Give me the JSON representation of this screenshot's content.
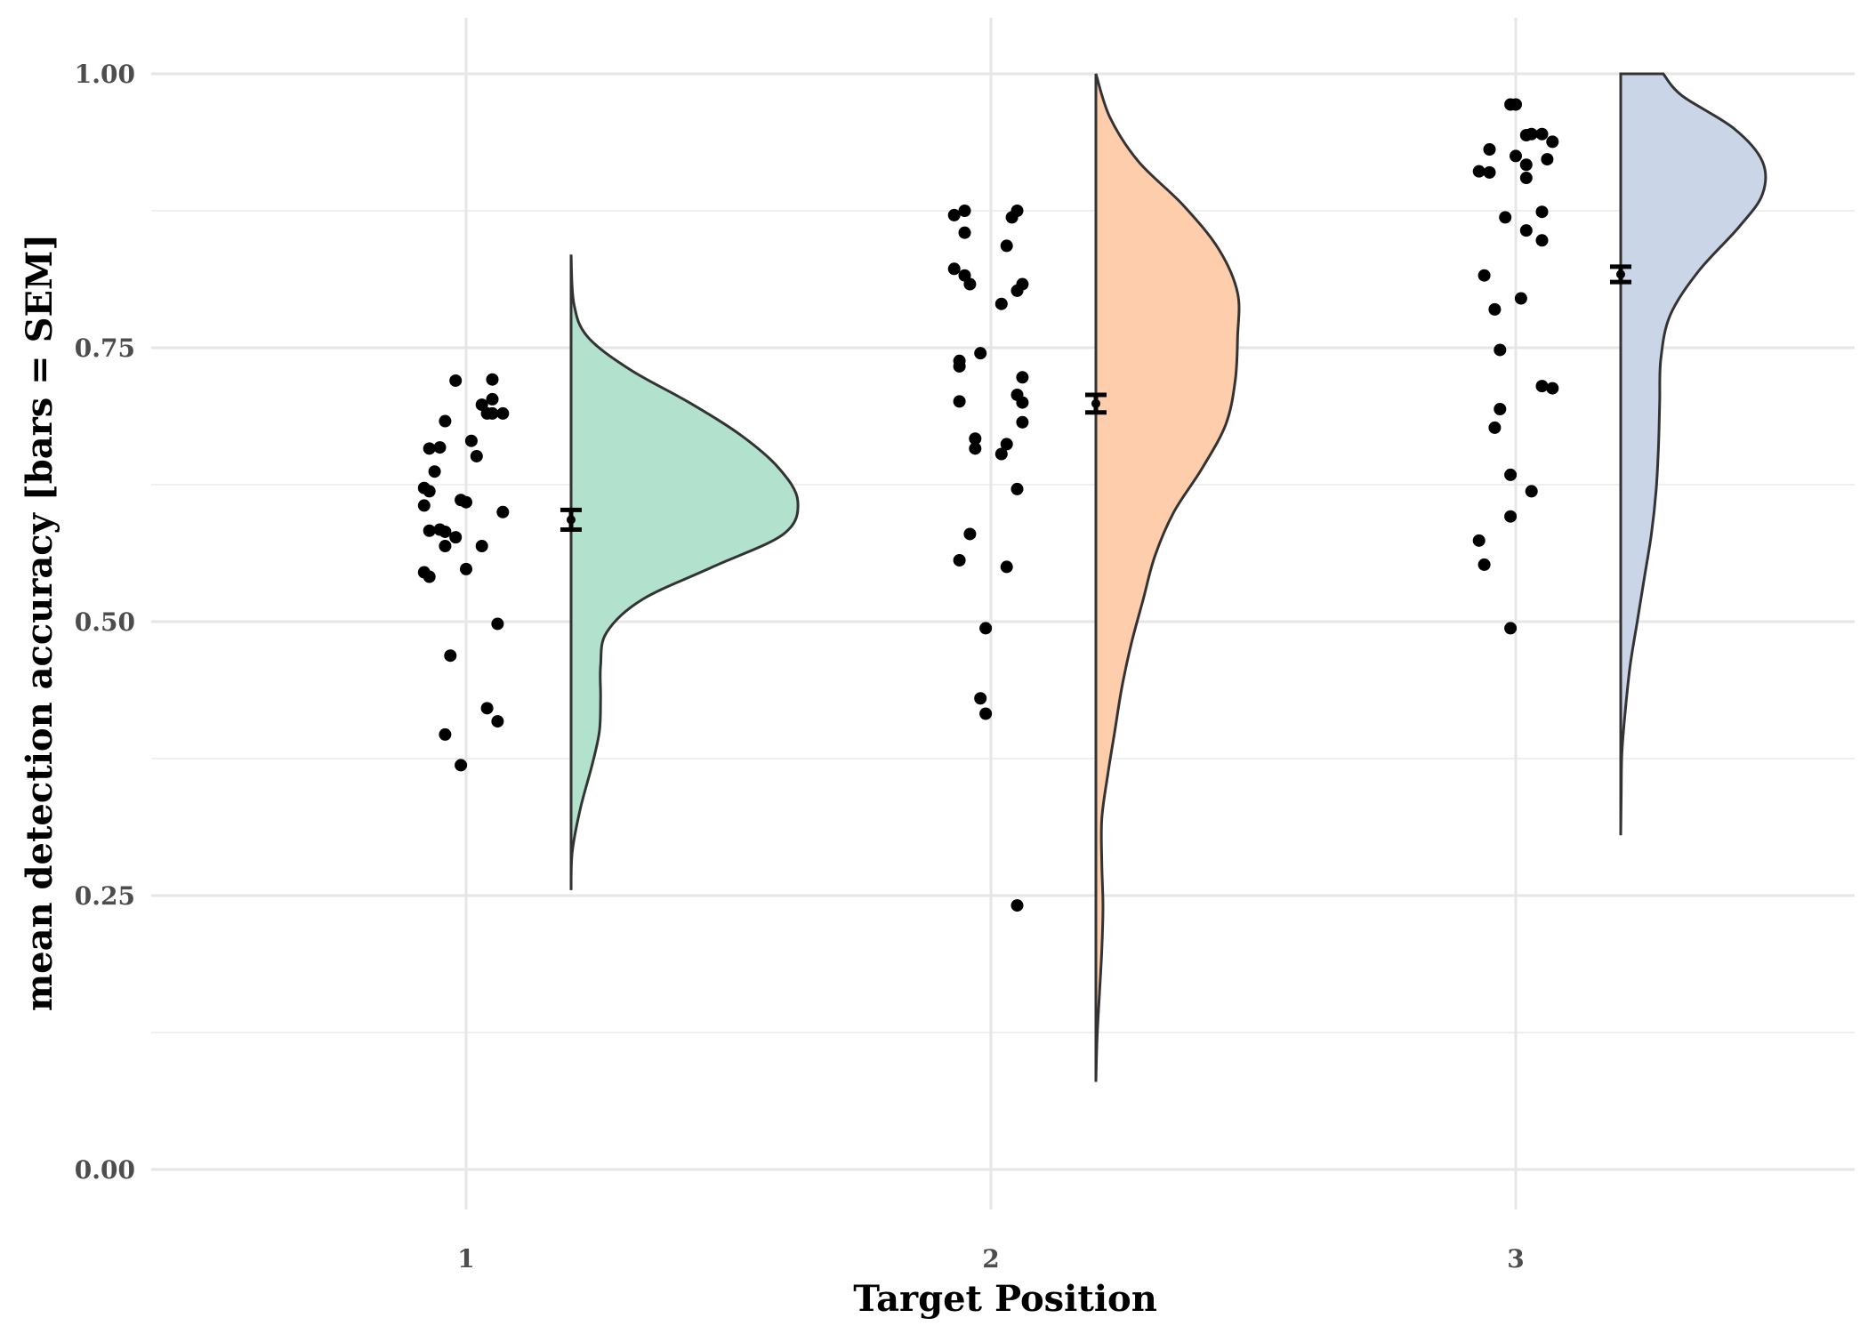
{
  "chart_data": {
    "type": "raincloud",
    "xlabel": "Target Position",
    "ylabel": "mean detection accuracy [bars = SEM]",
    "ylim": [
      -0.05,
      1.05
    ],
    "yticks": [
      "0.00",
      "0.25",
      "0.50",
      "0.75",
      "1.00"
    ],
    "ytick_values": [
      0,
      0.25,
      0.5,
      0.75,
      1.0
    ],
    "categories": [
      "1",
      "2",
      "3"
    ],
    "grid": true,
    "legend": "none",
    "groups": [
      {
        "category": "1",
        "color": "#b2e2cd",
        "mean": 0.593,
        "sem": 0.009,
        "points": [
          [
            0.98,
            0.72
          ],
          [
            1.05,
            0.721
          ],
          [
            1.03,
            0.698
          ],
          [
            1.05,
            0.703
          ],
          [
            1.07,
            0.69
          ],
          [
            1.04,
            0.69
          ],
          [
            1.05,
            0.69
          ],
          [
            0.96,
            0.683
          ],
          [
            1.01,
            0.665
          ],
          [
            0.95,
            0.659
          ],
          [
            0.93,
            0.658
          ],
          [
            1.02,
            0.651
          ],
          [
            0.94,
            0.637
          ],
          [
            0.92,
            0.622
          ],
          [
            0.93,
            0.619
          ],
          [
            0.99,
            0.611
          ],
          [
            1.0,
            0.609
          ],
          [
            0.92,
            0.606
          ],
          [
            1.07,
            0.6
          ],
          [
            0.95,
            0.584
          ],
          [
            0.93,
            0.583
          ],
          [
            0.96,
            0.582
          ],
          [
            0.98,
            0.577
          ],
          [
            1.03,
            0.569
          ],
          [
            0.96,
            0.569
          ],
          [
            1.0,
            0.548
          ],
          [
            0.92,
            0.545
          ],
          [
            0.93,
            0.541
          ],
          [
            1.06,
            0.498
          ],
          [
            0.97,
            0.469
          ],
          [
            1.04,
            0.421
          ],
          [
            1.06,
            0.409
          ],
          [
            0.96,
            0.397
          ],
          [
            0.99,
            0.369
          ]
        ],
        "density": [
          [
            0.255,
            0.0
          ],
          [
            0.29,
            0.005
          ],
          [
            0.33,
            0.04
          ],
          [
            0.37,
            0.09
          ],
          [
            0.4,
            0.12
          ],
          [
            0.43,
            0.125
          ],
          [
            0.46,
            0.125
          ],
          [
            0.49,
            0.15
          ],
          [
            0.52,
            0.3
          ],
          [
            0.55,
            0.6
          ],
          [
            0.58,
            0.9
          ],
          [
            0.61,
            0.96
          ],
          [
            0.64,
            0.88
          ],
          [
            0.67,
            0.72
          ],
          [
            0.7,
            0.5
          ],
          [
            0.73,
            0.25
          ],
          [
            0.76,
            0.07
          ],
          [
            0.79,
            0.012
          ],
          [
            0.835,
            0.0
          ]
        ]
      },
      {
        "category": "2",
        "color": "#fdcdac",
        "mean": 0.699,
        "sem": 0.008,
        "points": [
          [
            1.95,
            0.875
          ],
          [
            2.05,
            0.875
          ],
          [
            1.93,
            0.871
          ],
          [
            2.04,
            0.869
          ],
          [
            1.95,
            0.855
          ],
          [
            2.03,
            0.843
          ],
          [
            1.93,
            0.822
          ],
          [
            1.95,
            0.816
          ],
          [
            1.96,
            0.808
          ],
          [
            2.06,
            0.808
          ],
          [
            2.05,
            0.802
          ],
          [
            2.02,
            0.79
          ],
          [
            1.98,
            0.745
          ],
          [
            1.94,
            0.738
          ],
          [
            1.94,
            0.733
          ],
          [
            2.06,
            0.723
          ],
          [
            2.05,
            0.707
          ],
          [
            1.94,
            0.701
          ],
          [
            2.06,
            0.7
          ],
          [
            2.06,
            0.682
          ],
          [
            1.97,
            0.667
          ],
          [
            2.03,
            0.662
          ],
          [
            1.97,
            0.658
          ],
          [
            2.02,
            0.653
          ],
          [
            2.05,
            0.621
          ],
          [
            1.96,
            0.58
          ],
          [
            1.94,
            0.556
          ],
          [
            2.03,
            0.55
          ],
          [
            1.99,
            0.494
          ],
          [
            1.98,
            0.43
          ],
          [
            1.99,
            0.416
          ],
          [
            2.05,
            0.241
          ]
        ],
        "density": [
          [
            0.08,
            0.0
          ],
          [
            0.12,
            0.005
          ],
          [
            0.16,
            0.015
          ],
          [
            0.2,
            0.025
          ],
          [
            0.24,
            0.03
          ],
          [
            0.28,
            0.025
          ],
          [
            0.32,
            0.025
          ],
          [
            0.36,
            0.05
          ],
          [
            0.4,
            0.08
          ],
          [
            0.44,
            0.11
          ],
          [
            0.48,
            0.15
          ],
          [
            0.52,
            0.2
          ],
          [
            0.56,
            0.25
          ],
          [
            0.6,
            0.33
          ],
          [
            0.64,
            0.45
          ],
          [
            0.68,
            0.55
          ],
          [
            0.72,
            0.59
          ],
          [
            0.76,
            0.6
          ],
          [
            0.8,
            0.6
          ],
          [
            0.84,
            0.52
          ],
          [
            0.88,
            0.37
          ],
          [
            0.92,
            0.18
          ],
          [
            0.96,
            0.06
          ],
          [
            1.0,
            0.0
          ]
        ]
      },
      {
        "category": "3",
        "color": "#cbd5e8",
        "mean": 0.817,
        "sem": 0.007,
        "points": [
          [
            2.99,
            0.972
          ],
          [
            3.0,
            0.972
          ],
          [
            3.05,
            0.945
          ],
          [
            3.03,
            0.945
          ],
          [
            3.02,
            0.944
          ],
          [
            3.07,
            0.938
          ],
          [
            2.95,
            0.931
          ],
          [
            3.0,
            0.925
          ],
          [
            3.06,
            0.922
          ],
          [
            3.02,
            0.917
          ],
          [
            2.93,
            0.911
          ],
          [
            2.95,
            0.91
          ],
          [
            3.02,
            0.905
          ],
          [
            3.05,
            0.874
          ],
          [
            2.98,
            0.869
          ],
          [
            3.02,
            0.857
          ],
          [
            3.05,
            0.848
          ],
          [
            2.94,
            0.816
          ],
          [
            3.01,
            0.795
          ],
          [
            2.96,
            0.785
          ],
          [
            2.97,
            0.748
          ],
          [
            3.05,
            0.715
          ],
          [
            3.07,
            0.713
          ],
          [
            2.97,
            0.694
          ],
          [
            2.96,
            0.677
          ],
          [
            2.99,
            0.634
          ],
          [
            3.03,
            0.619
          ],
          [
            2.99,
            0.596
          ],
          [
            2.93,
            0.574
          ],
          [
            2.94,
            0.552
          ],
          [
            2.99,
            0.494
          ]
        ],
        "density": [
          [
            0.305,
            0.0
          ],
          [
            0.34,
            0.002
          ],
          [
            0.38,
            0.005
          ],
          [
            0.42,
            0.02
          ],
          [
            0.46,
            0.04
          ],
          [
            0.5,
            0.07
          ],
          [
            0.54,
            0.1
          ],
          [
            0.58,
            0.13
          ],
          [
            0.62,
            0.15
          ],
          [
            0.66,
            0.16
          ],
          [
            0.7,
            0.165
          ],
          [
            0.74,
            0.17
          ],
          [
            0.78,
            0.21
          ],
          [
            0.82,
            0.33
          ],
          [
            0.86,
            0.5
          ],
          [
            0.89,
            0.6
          ],
          [
            0.92,
            0.6
          ],
          [
            0.95,
            0.48
          ],
          [
            0.98,
            0.26
          ],
          [
            1.0,
            0.18
          ]
        ]
      }
    ]
  }
}
